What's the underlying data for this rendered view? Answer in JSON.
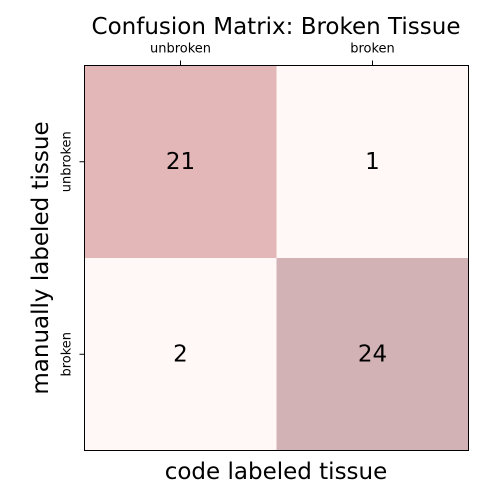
{
  "chart_data": {
    "type": "heatmap",
    "title": "Confusion Matrix: Broken Tissue",
    "xlabel": "code labeled tissue",
    "ylabel": "manually labeled tissue",
    "x_categories": [
      "unbroken",
      "broken"
    ],
    "y_categories": [
      "unbroken",
      "broken"
    ],
    "matrix": [
      [
        21,
        1
      ],
      [
        2,
        24
      ]
    ],
    "colors": {
      "low": "#fff8f6",
      "cell_11": "#e3b6b7",
      "cell_22": "#d2b2b4"
    }
  }
}
